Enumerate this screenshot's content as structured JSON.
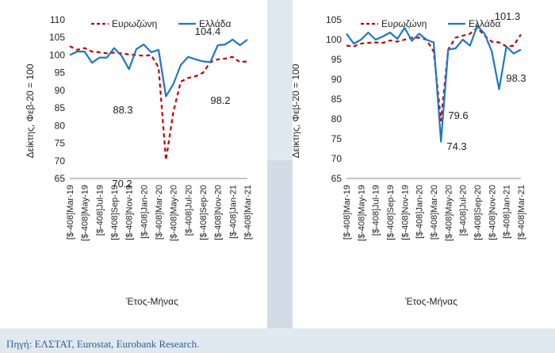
{
  "chart_data": [
    {
      "type": "line",
      "ylabel": "Δείκτης, Φεβ-20 = 100",
      "xlabel": "Έτος-Μήνας",
      "ylim": [
        65,
        110
      ],
      "yticks": [
        65,
        70,
        75,
        80,
        85,
        90,
        95,
        100,
        105,
        110
      ],
      "x_tick_labels": [
        "[$-408]Mar-19",
        "[$-408]May-19",
        "[$-408]Jul-19",
        "[$-408]Sep-19",
        "[$-408]Nov-19",
        "[$-408]Jan-20",
        "[$-408]Mar-20",
        "[$-408]May-20",
        "[$-408]Jul-20",
        "[$-408]Sep-20",
        "[$-408]Nov-20",
        "[$-408]Jan-21",
        "[$-408]Mar-21"
      ],
      "categories": [
        "Mar-19",
        "Apr-19",
        "May-19",
        "Jun-19",
        "Jul-19",
        "Aug-19",
        "Sep-19",
        "Oct-19",
        "Nov-19",
        "Dec-19",
        "Jan-20",
        "Feb-20",
        "Mar-20",
        "Apr-20",
        "May-20",
        "Jun-20",
        "Jul-20",
        "Aug-20",
        "Sep-20",
        "Oct-20",
        "Nov-20",
        "Dec-20",
        "Jan-21",
        "Feb-21",
        "Mar-21"
      ],
      "series": [
        {
          "name": "Ευρωζώνη",
          "color": "#c00000",
          "style": "dashed",
          "values": [
            102.5,
            101.5,
            102,
            101,
            100.8,
            100.5,
            100.7,
            100.5,
            100.2,
            100,
            99.8,
            100,
            96.5,
            70.2,
            84,
            92.5,
            93.5,
            94,
            95,
            98,
            98.8,
            99,
            99.5,
            98,
            98.2
          ]
        },
        {
          "name": "Ελλάδα",
          "color": "#1f77c4",
          "style": "solid",
          "values": [
            100,
            101,
            101,
            97.8,
            99.3,
            99.3,
            102,
            99.8,
            96,
            101.7,
            103,
            100.8,
            101.5,
            88.3,
            91.8,
            97.2,
            99.5,
            98.8,
            98.2,
            98,
            102.8,
            103,
            104.4,
            102.8,
            104.4
          ]
        }
      ],
      "annotations": [
        "104.4",
        "88.3",
        "70.2",
        "98.2"
      ]
    },
    {
      "type": "line",
      "ylabel": "Δείκτης, Φεβ-20 = 100",
      "xlabel": "Έτος-Μήνας",
      "ylim": [
        65,
        105
      ],
      "yticks": [
        65,
        70,
        75,
        80,
        85,
        90,
        95,
        100,
        105
      ],
      "x_tick_labels": [
        "[$-408]Mar-19",
        "[$-408]May-19",
        "[$-408]Jul-19",
        "[$-408]Sep-19",
        "[$-408]Nov-19",
        "[$-408]Jan-20",
        "[$-408]Mar-20",
        "[$-408]May-20",
        "[$-408]Jul-20",
        "[$-408]Sep-20",
        "[$-408]Nov-20",
        "[$-408]Jan-21",
        "[$-408]Mar-21"
      ],
      "categories": [
        "Mar-19",
        "Apr-19",
        "May-19",
        "Jun-19",
        "Jul-19",
        "Aug-19",
        "Sep-19",
        "Oct-19",
        "Nov-19",
        "Dec-19",
        "Jan-20",
        "Feb-20",
        "Mar-20",
        "Apr-20",
        "May-20",
        "Jun-20",
        "Jul-20",
        "Aug-20",
        "Sep-20",
        "Oct-20",
        "Nov-20",
        "Dec-20",
        "Jan-21",
        "Feb-21",
        "Mar-21"
      ],
      "series": [
        {
          "name": "Ευρωζώνη",
          "color": "#c00000",
          "style": "dashed",
          "values": [
            98.5,
            98.3,
            99,
            99.2,
            99.3,
            99.2,
            99.8,
            99.5,
            100,
            100.5,
            100.5,
            100,
            97,
            79.6,
            97.5,
            100.5,
            101,
            101.5,
            103,
            101,
            99.5,
            99.3,
            98.3,
            98.5,
            101.3
          ]
        },
        {
          "name": "Ελλάδα",
          "color": "#1f77c4",
          "style": "solid",
          "values": [
            101.5,
            99,
            100,
            101.8,
            100,
            100.8,
            101.8,
            100.2,
            103,
            99.7,
            101.5,
            100,
            99.3,
            74.3,
            97.5,
            97.8,
            100,
            98.5,
            103.5,
            101.5,
            97,
            87.5,
            98.3,
            96.5,
            97.5
          ]
        }
      ],
      "annotations": [
        "101.3",
        "79.6",
        "74.3",
        "98.3"
      ]
    }
  ],
  "source": "Πηγή: ΕΛΣΤΑΤ, Eurostat, Eurobank Research."
}
